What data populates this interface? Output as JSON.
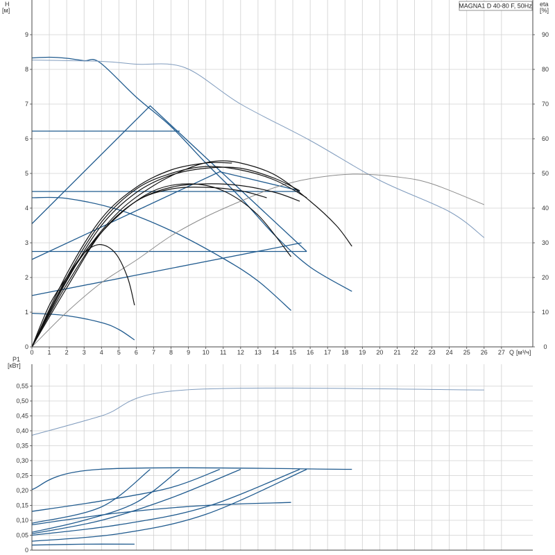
{
  "title": "MAGNA1 D 40-80 F, 50Hz",
  "colors": {
    "blue": "#1f5a8e",
    "lightblue": "#7f9bbd",
    "black": "#111111",
    "gray": "#8a8a8a",
    "grid": "#d0d0d0",
    "axis": "#444444"
  },
  "chart_data": [
    {
      "type": "line",
      "name": "head-efficiency",
      "xlabel": "Q",
      "xunit": "[м³/ч]",
      "ylabel": "H",
      "yunit": "[м]",
      "y2label": "eta",
      "y2unit": "[%]",
      "xlim": [
        0,
        28.8
      ],
      "ylim": [
        0,
        10
      ],
      "y2lim": [
        0,
        100
      ],
      "xticks": [
        0,
        1,
        2,
        3,
        4,
        5,
        6,
        7,
        8,
        9,
        10,
        11,
        12,
        13,
        14,
        15,
        16,
        17,
        18,
        19,
        20,
        21,
        22,
        23,
        24,
        25,
        26,
        27
      ],
      "yticks": [
        0,
        1,
        2,
        3,
        4,
        5,
        6,
        7,
        8,
        9
      ],
      "y2ticks": [
        0,
        10,
        20,
        30,
        40,
        50,
        60,
        70,
        80,
        90
      ],
      "grid": true,
      "series": [
        {
          "style": "blue",
          "points": [
            [
              0,
              8.33
            ],
            [
              1,
              8.35
            ],
            [
              2,
              8.32
            ],
            [
              3,
              8.25
            ],
            [
              3.9,
              8.2
            ],
            [
              6,
              7.2
            ],
            [
              8,
              6.35
            ],
            [
              10,
              5.3
            ],
            [
              12,
              4.3
            ],
            [
              14,
              3.2
            ],
            [
              16,
              2.3
            ],
            [
              18.4,
              1.6
            ]
          ]
        },
        {
          "style": "blue",
          "points": [
            [
              0,
              6.22
            ],
            [
              8.5,
              6.22
            ]
          ]
        },
        {
          "style": "blue",
          "points": [
            [
              0,
              4.48
            ],
            [
              15.4,
              4.48
            ]
          ]
        },
        {
          "style": "blue",
          "points": [
            [
              0,
              2.75
            ],
            [
              15.8,
              2.75
            ]
          ]
        },
        {
          "style": "blue",
          "points": [
            [
              0,
              3.55
            ],
            [
              6.8,
              6.95
            ],
            [
              15.8,
              2.75
            ]
          ]
        },
        {
          "style": "blue",
          "points": [
            [
              0,
              2.52
            ],
            [
              10.8,
              5.05
            ],
            [
              15.4,
              4.5
            ]
          ]
        },
        {
          "style": "blue",
          "points": [
            [
              0,
              1.48
            ],
            [
              15.5,
              3.0
            ]
          ]
        },
        {
          "style": "blue",
          "points": [
            [
              0,
              4.3
            ],
            [
              2,
              4.28
            ],
            [
              5,
              3.95
            ],
            [
              8,
              3.35
            ],
            [
              11,
              2.55
            ],
            [
              13,
              1.9
            ],
            [
              14.9,
              1.05
            ]
          ]
        },
        {
          "style": "blue",
          "points": [
            [
              0,
              0.97
            ],
            [
              2,
              0.9
            ],
            [
              4,
              0.7
            ],
            [
              5,
              0.5
            ],
            [
              5.9,
              0.2
            ]
          ]
        },
        {
          "style": "lightblue",
          "points": [
            [
              0,
              8.27
            ],
            [
              4,
              8.23
            ],
            [
              6,
              8.15
            ],
            [
              8.8,
              8.05
            ],
            [
              12,
              7.0
            ],
            [
              16,
              5.95
            ],
            [
              20,
              4.8
            ],
            [
              24,
              3.9
            ],
            [
              26,
              3.15
            ]
          ]
        },
        {
          "style": "gray",
          "y_axis": "y2",
          "points": [
            [
              0,
              0
            ],
            [
              2,
              10
            ],
            [
              4,
              18.5
            ],
            [
              6,
              25
            ],
            [
              8,
              32
            ],
            [
              10,
              37.5
            ],
            [
              12,
              42
            ],
            [
              14,
              46
            ],
            [
              16,
              48.5
            ],
            [
              18.5,
              49.8
            ],
            [
              21,
              49
            ],
            [
              23,
              47
            ],
            [
              26,
              41
            ]
          ]
        },
        {
          "style": "black",
          "y_axis": "y2",
          "points": [
            [
              0,
              0
            ],
            [
              1.5,
              15
            ],
            [
              3,
              27
            ],
            [
              5,
              39
            ],
            [
              7,
              46.5
            ],
            [
              9,
              51.5
            ],
            [
              10.5,
              53.5
            ],
            [
              12,
              53
            ],
            [
              14,
              49.5
            ],
            [
              16,
              42
            ],
            [
              17.5,
              35
            ],
            [
              18.4,
              29
            ]
          ]
        },
        {
          "style": "black",
          "y_axis": "y2",
          "points": [
            [
              0,
              0
            ],
            [
              2,
              18
            ],
            [
              4,
              33
            ],
            [
              6,
              42
            ],
            [
              8,
              45.5
            ],
            [
              10,
              46
            ],
            [
              12,
              45
            ],
            [
              13.5,
              43
            ]
          ]
        },
        {
          "style": "black",
          "y_axis": "y2",
          "points": [
            [
              0,
              0
            ],
            [
              1.5,
              15
            ],
            [
              3,
              27
            ],
            [
              5,
              38
            ],
            [
              7,
              45
            ],
            [
              9,
              47
            ],
            [
              11,
              45
            ],
            [
              13,
              38
            ],
            [
              14.9,
              26
            ]
          ]
        },
        {
          "style": "black",
          "y_axis": "y2",
          "points": [
            [
              0,
              0
            ],
            [
              1,
              12
            ],
            [
              2,
              20
            ],
            [
              3,
              27
            ],
            [
              3.9,
              29.5
            ],
            [
              4.8,
              27
            ],
            [
              5.5,
              20
            ],
            [
              5.9,
              12
            ]
          ]
        },
        {
          "style": "black",
          "y_axis": "y2",
          "points": [
            [
              0,
              0
            ],
            [
              2,
              17
            ],
            [
              4,
              33
            ],
            [
              6,
              42
            ],
            [
              8,
              46
            ],
            [
              10,
              47
            ],
            [
              12,
              46.5
            ],
            [
              14,
              44.5
            ],
            [
              15.4,
              42
            ]
          ]
        },
        {
          "style": "black",
          "y_axis": "y2",
          "points": [
            [
              0,
              0
            ],
            [
              2,
              20
            ],
            [
              4,
              36
            ],
            [
              6,
              45.5
            ],
            [
              8,
              50
            ],
            [
              10,
              52
            ],
            [
              12,
              51
            ],
            [
              14,
              48
            ],
            [
              15.8,
              43
            ]
          ]
        },
        {
          "style": "black",
          "y_axis": "y2",
          "points": [
            [
              0,
              0
            ],
            [
              2,
              21
            ],
            [
              4,
              37
            ],
            [
              6,
              46
            ],
            [
              8,
              51
            ],
            [
              10,
              53
            ],
            [
              11.5,
              53
            ]
          ]
        },
        {
          "style": "black",
          "y_axis": "y2",
          "points": [
            [
              0,
              0
            ],
            [
              2,
              19
            ],
            [
              4,
              35
            ],
            [
              6,
              44.5
            ],
            [
              8,
              49.5
            ],
            [
              10,
              51.5
            ],
            [
              12,
              51.5
            ],
            [
              14,
              48.5
            ],
            [
              15.4,
              45
            ]
          ]
        }
      ]
    },
    {
      "type": "line",
      "name": "power",
      "ylabel": "P1",
      "yunit": "[кВт]",
      "xlim": [
        0,
        28.8
      ],
      "ylim": [
        0,
        0.6
      ],
      "yticks": [
        "0",
        "0,05",
        "0,10",
        "0,15",
        "0,20",
        "0,25",
        "0,30",
        "0,35",
        "0,40",
        "0,45",
        "0,50",
        "0,55"
      ],
      "ytick_values": [
        0,
        0.05,
        0.1,
        0.15,
        0.2,
        0.25,
        0.3,
        0.35,
        0.4,
        0.45,
        0.5,
        0.55
      ],
      "grid": true,
      "series": [
        {
          "style": "lightblue",
          "points": [
            [
              0,
              0.385
            ],
            [
              4,
              0.45
            ],
            [
              8.8,
              0.537
            ],
            [
              26,
              0.537
            ]
          ]
        },
        {
          "style": "blue",
          "points": [
            [
              0,
              0.203
            ],
            [
              3.9,
              0.271
            ],
            [
              18.4,
              0.271
            ]
          ]
        },
        {
          "style": "blue",
          "points": [
            [
              0,
              0.13
            ],
            [
              4,
              0.165
            ],
            [
              8,
              0.21
            ],
            [
              10.8,
              0.271
            ]
          ]
        },
        {
          "style": "blue",
          "points": [
            [
              0,
              0.09
            ],
            [
              4,
              0.145
            ],
            [
              6.8,
              0.271
            ]
          ]
        },
        {
          "style": "blue",
          "points": [
            [
              0,
              0.06
            ],
            [
              3,
              0.1
            ],
            [
              6,
              0.16
            ],
            [
              8.5,
              0.271
            ]
          ]
        },
        {
          "style": "blue",
          "points": [
            [
              0,
              0.085
            ],
            [
              5,
              0.125
            ],
            [
              10,
              0.15
            ],
            [
              14.9,
              0.16
            ]
          ]
        },
        {
          "style": "blue",
          "points": [
            [
              0,
              0.055
            ],
            [
              4,
              0.1
            ],
            [
              8,
              0.175
            ],
            [
              12,
              0.271
            ]
          ]
        },
        {
          "style": "blue",
          "points": [
            [
              0,
              0.05
            ],
            [
              5,
              0.085
            ],
            [
              10,
              0.145
            ],
            [
              15.4,
              0.271
            ]
          ]
        },
        {
          "style": "blue",
          "points": [
            [
              0,
              0.03
            ],
            [
              5,
              0.055
            ],
            [
              10,
              0.12
            ],
            [
              15.8,
              0.271
            ]
          ]
        },
        {
          "style": "blue",
          "points": [
            [
              0,
              0.017
            ],
            [
              3,
              0.02
            ],
            [
              5.9,
              0.02
            ]
          ]
        }
      ]
    }
  ]
}
